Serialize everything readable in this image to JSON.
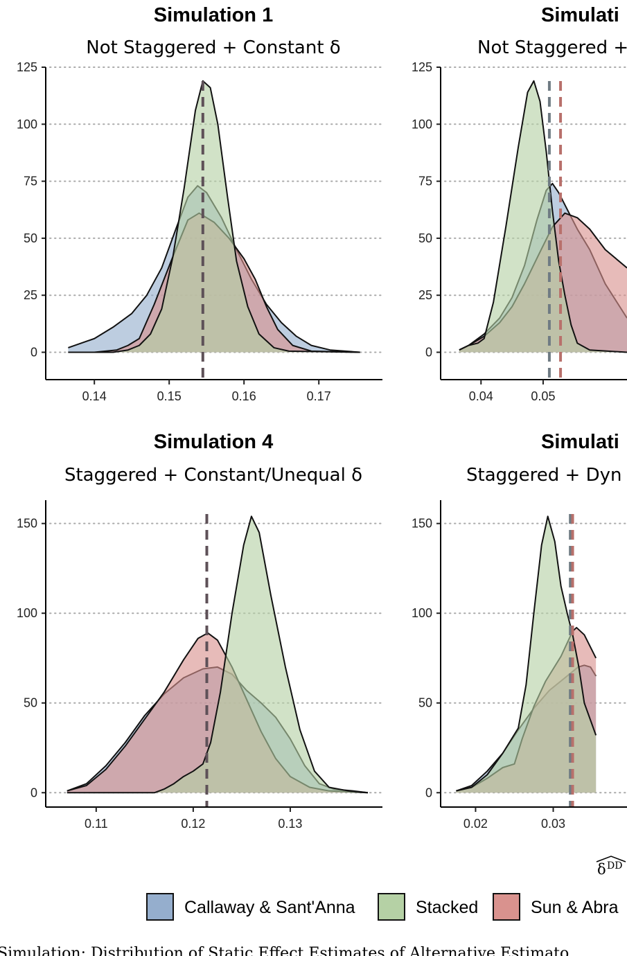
{
  "colors": {
    "callaway": "#95AECD",
    "stacked": "#B5D1A5",
    "sun": "#D9928E",
    "outline": "#111111",
    "vline_grey": "#6F7B83",
    "vline_red": "#B8706B",
    "vline_dark": "#5E5158",
    "grid": "#AAAAAA"
  },
  "legend": {
    "items": [
      {
        "label": "Callaway & Sant'Anna",
        "key": "callaway"
      },
      {
        "label": "Stacked",
        "key": "stacked"
      },
      {
        "label": "Sun & Abra",
        "key": "sun"
      }
    ]
  },
  "caption": "Simulation: Distribution of Static Effect Estimates of Alternative Estimato",
  "chart_data": [
    {
      "type": "area",
      "title": "Simulation 1",
      "subtitle": "Not Staggered + Constant δ",
      "xlabel": "",
      "xlim": [
        0.1335,
        0.1785
      ],
      "ylim": [
        -12,
        125
      ],
      "yticks": [
        0,
        25,
        50,
        75,
        100,
        125
      ],
      "xticks": [
        {
          "value": 0.14,
          "label": "0.14"
        },
        {
          "value": 0.15,
          "label": "0.15"
        },
        {
          "value": 0.16,
          "label": "0.16"
        },
        {
          "value": 0.17,
          "label": "0.17"
        }
      ],
      "vlines": [
        {
          "x": 0.1545,
          "color": "vline_dark"
        }
      ],
      "series": [
        {
          "name": "Callaway & Sant'Anna",
          "key": "callaway",
          "points": [
            [
              0.1365,
              2
            ],
            [
              0.14,
              6
            ],
            [
              0.1425,
              11
            ],
            [
              0.145,
              17
            ],
            [
              0.147,
              25
            ],
            [
              0.149,
              37
            ],
            [
              0.151,
              55
            ],
            [
              0.1525,
              68
            ],
            [
              0.1538,
              73
            ],
            [
              0.155,
              70
            ],
            [
              0.157,
              59
            ],
            [
              0.159,
              45
            ],
            [
              0.161,
              32
            ],
            [
              0.163,
              21
            ],
            [
              0.165,
              13
            ],
            [
              0.167,
              7
            ],
            [
              0.169,
              3
            ],
            [
              0.1715,
              1
            ],
            [
              0.1755,
              0
            ]
          ]
        },
        {
          "name": "Sun & Abra",
          "key": "sun",
          "points": [
            [
              0.1365,
              0
            ],
            [
              0.14,
              0
            ],
            [
              0.143,
              1
            ],
            [
              0.1445,
              3
            ],
            [
              0.146,
              6
            ],
            [
              0.148,
              21
            ],
            [
              0.1505,
              42
            ],
            [
              0.1525,
              58
            ],
            [
              0.154,
              61
            ],
            [
              0.156,
              57
            ],
            [
              0.158,
              50
            ],
            [
              0.16,
              41
            ],
            [
              0.1615,
              32
            ],
            [
              0.163,
              20
            ],
            [
              0.1645,
              10
            ],
            [
              0.1665,
              3
            ],
            [
              0.169,
              0.5
            ],
            [
              0.1755,
              0
            ]
          ]
        },
        {
          "name": "Stacked",
          "key": "stacked",
          "points": [
            [
              0.1365,
              0
            ],
            [
              0.1425,
              0
            ],
            [
              0.1445,
              1
            ],
            [
              0.146,
              3
            ],
            [
              0.1475,
              8
            ],
            [
              0.149,
              19
            ],
            [
              0.1505,
              42
            ],
            [
              0.152,
              72
            ],
            [
              0.1535,
              106
            ],
            [
              0.1545,
              119
            ],
            [
              0.1555,
              116
            ],
            [
              0.1565,
              100
            ],
            [
              0.1578,
              68
            ],
            [
              0.159,
              40
            ],
            [
              0.1605,
              20
            ],
            [
              0.162,
              8
            ],
            [
              0.164,
              2
            ],
            [
              0.166,
              0.5
            ],
            [
              0.1755,
              0
            ]
          ]
        }
      ]
    },
    {
      "type": "area",
      "title": "Simulati",
      "subtitle": "Not Staggered +",
      "xlabel": "",
      "xlim": [
        0.0335,
        0.0635
      ],
      "ylim": [
        -12,
        125
      ],
      "yticks": [
        0,
        25,
        50,
        75,
        100,
        125
      ],
      "xticks": [
        {
          "value": 0.04,
          "label": "0.04"
        },
        {
          "value": 0.05,
          "label": "0.05"
        }
      ],
      "vlines": [
        {
          "x": 0.051,
          "color": "vline_grey"
        },
        {
          "x": 0.0528,
          "color": "vline_red"
        }
      ],
      "series": [
        {
          "name": "Callaway & Sant'Anna",
          "key": "callaway",
          "points": [
            [
              0.0365,
              1
            ],
            [
              0.038,
              3
            ],
            [
              0.0405,
              8
            ],
            [
              0.043,
              15
            ],
            [
              0.045,
              24
            ],
            [
              0.047,
              38
            ],
            [
              0.049,
              58
            ],
            [
              0.0505,
              71
            ],
            [
              0.0515,
              74
            ],
            [
              0.0525,
              70
            ],
            [
              0.054,
              62
            ],
            [
              0.0555,
              54
            ],
            [
              0.0575,
              45
            ],
            [
              0.06,
              30
            ],
            [
              0.0635,
              15
            ]
          ]
        },
        {
          "name": "Sun & Abra",
          "key": "sun",
          "points": [
            [
              0.0365,
              1
            ],
            [
              0.038,
              3
            ],
            [
              0.0405,
              7
            ],
            [
              0.043,
              13
            ],
            [
              0.045,
              20
            ],
            [
              0.047,
              30
            ],
            [
              0.0495,
              44
            ],
            [
              0.0515,
              55
            ],
            [
              0.0535,
              61
            ],
            [
              0.0555,
              59
            ],
            [
              0.0575,
              54
            ],
            [
              0.06,
              45
            ],
            [
              0.0635,
              37
            ]
          ]
        },
        {
          "name": "Stacked",
          "key": "stacked",
          "points": [
            [
              0.0365,
              1
            ],
            [
              0.038,
              3
            ],
            [
              0.0395,
              4
            ],
            [
              0.0405,
              6
            ],
            [
              0.042,
              22
            ],
            [
              0.044,
              55
            ],
            [
              0.046,
              90
            ],
            [
              0.0475,
              114
            ],
            [
              0.0485,
              119
            ],
            [
              0.0495,
              110
            ],
            [
              0.0505,
              88
            ],
            [
              0.0515,
              62
            ],
            [
              0.0525,
              40
            ],
            [
              0.0535,
              25
            ],
            [
              0.0545,
              12
            ],
            [
              0.0555,
              4
            ],
            [
              0.0575,
              1
            ],
            [
              0.0635,
              0
            ]
          ]
        }
      ]
    },
    {
      "type": "area",
      "title": "Simulation 4",
      "subtitle": "Staggered + Constant/Unequal δ",
      "xlabel": "",
      "xlim": [
        0.1048,
        0.1395
      ],
      "ylim": [
        -8,
        163
      ],
      "yticks": [
        0,
        50,
        100,
        150
      ],
      "xticks": [
        {
          "value": 0.11,
          "label": "0.11"
        },
        {
          "value": 0.12,
          "label": "0.12"
        },
        {
          "value": 0.13,
          "label": "0.13"
        }
      ],
      "vlines": [
        {
          "x": 0.1214,
          "color": "vline_dark"
        }
      ],
      "series": [
        {
          "name": "Callaway & Sant'Anna",
          "key": "callaway",
          "points": [
            [
              0.107,
              1
            ],
            [
              0.109,
              5
            ],
            [
              0.111,
              15
            ],
            [
              0.113,
              28
            ],
            [
              0.115,
              43
            ],
            [
              0.117,
              55
            ],
            [
              0.119,
              64
            ],
            [
              0.121,
              69
            ],
            [
              0.1225,
              70
            ],
            [
              0.124,
              66
            ],
            [
              0.1255,
              57
            ],
            [
              0.127,
              50
            ],
            [
              0.1285,
              42
            ],
            [
              0.13,
              30
            ],
            [
              0.1315,
              15
            ],
            [
              0.133,
              5
            ],
            [
              0.1345,
              2
            ],
            [
              0.1365,
              1
            ],
            [
              0.138,
              0
            ]
          ]
        },
        {
          "name": "Sun & Abra",
          "key": "sun",
          "points": [
            [
              0.107,
              1
            ],
            [
              0.109,
              4
            ],
            [
              0.111,
              13
            ],
            [
              0.113,
              26
            ],
            [
              0.115,
              41
            ],
            [
              0.117,
              56
            ],
            [
              0.119,
              74
            ],
            [
              0.1205,
              86
            ],
            [
              0.1215,
              89
            ],
            [
              0.1225,
              85
            ],
            [
              0.124,
              70
            ],
            [
              0.1255,
              52
            ],
            [
              0.127,
              34
            ],
            [
              0.1285,
              19
            ],
            [
              0.13,
              9
            ],
            [
              0.132,
              3
            ],
            [
              0.134,
              1
            ],
            [
              0.138,
              0
            ]
          ]
        },
        {
          "name": "Stacked",
          "key": "stacked",
          "points": [
            [
              0.107,
              0
            ],
            [
              0.116,
              0
            ],
            [
              0.117,
              2
            ],
            [
              0.118,
              5
            ],
            [
              0.119,
              9
            ],
            [
              0.12,
              12
            ],
            [
              0.121,
              16
            ],
            [
              0.1218,
              28
            ],
            [
              0.1228,
              56
            ],
            [
              0.124,
              100
            ],
            [
              0.1252,
              138
            ],
            [
              0.126,
              154
            ],
            [
              0.1268,
              145
            ],
            [
              0.128,
              110
            ],
            [
              0.1295,
              70
            ],
            [
              0.131,
              35
            ],
            [
              0.1325,
              12
            ],
            [
              0.134,
              3
            ],
            [
              0.136,
              1
            ],
            [
              0.138,
              0
            ]
          ]
        }
      ]
    },
    {
      "type": "area",
      "title": "Simulati",
      "subtitle": "Staggered + Dyn",
      "xlabel": "δ̂ DD",
      "xlim": [
        0.0155,
        0.0395
      ],
      "ylim": [
        -8,
        163
      ],
      "yticks": [
        0,
        50,
        100,
        150
      ],
      "xticks": [
        {
          "value": 0.02,
          "label": "0.02"
        },
        {
          "value": 0.03,
          "label": "0.03"
        }
      ],
      "vlines": [
        {
          "x": 0.0322,
          "color": "vline_grey"
        },
        {
          "x": 0.0325,
          "color": "vline_red"
        }
      ],
      "series": [
        {
          "name": "Callaway & Sant'Anna",
          "key": "callaway",
          "points": [
            [
              0.0175,
              1
            ],
            [
              0.0195,
              4
            ],
            [
              0.0215,
              12
            ],
            [
              0.0235,
              22
            ],
            [
              0.0255,
              35
            ],
            [
              0.0275,
              47
            ],
            [
              0.0295,
              57
            ],
            [
              0.0315,
              64
            ],
            [
              0.0332,
              70
            ],
            [
              0.034,
              71
            ],
            [
              0.0348,
              70
            ],
            [
              0.0355,
              65
            ]
          ]
        },
        {
          "name": "Sun & Abra",
          "key": "sun",
          "points": [
            [
              0.0175,
              1
            ],
            [
              0.0195,
              3
            ],
            [
              0.0215,
              8
            ],
            [
              0.0235,
              14
            ],
            [
              0.025,
              16
            ],
            [
              0.026,
              30
            ],
            [
              0.0275,
              48
            ],
            [
              0.029,
              62
            ],
            [
              0.031,
              76
            ],
            [
              0.0325,
              90
            ],
            [
              0.033,
              92
            ],
            [
              0.034,
              88
            ],
            [
              0.0355,
              75
            ]
          ]
        },
        {
          "name": "Stacked",
          "key": "stacked",
          "points": [
            [
              0.0175,
              1
            ],
            [
              0.0195,
              3
            ],
            [
              0.0215,
              10
            ],
            [
              0.0235,
              22
            ],
            [
              0.0255,
              36
            ],
            [
              0.0265,
              60
            ],
            [
              0.0275,
              100
            ],
            [
              0.0285,
              138
            ],
            [
              0.0293,
              154
            ],
            [
              0.0302,
              140
            ],
            [
              0.031,
              115
            ],
            [
              0.0318,
              100
            ],
            [
              0.0325,
              88
            ],
            [
              0.0333,
              70
            ],
            [
              0.034,
              50
            ],
            [
              0.0355,
              32
            ]
          ]
        }
      ]
    }
  ]
}
